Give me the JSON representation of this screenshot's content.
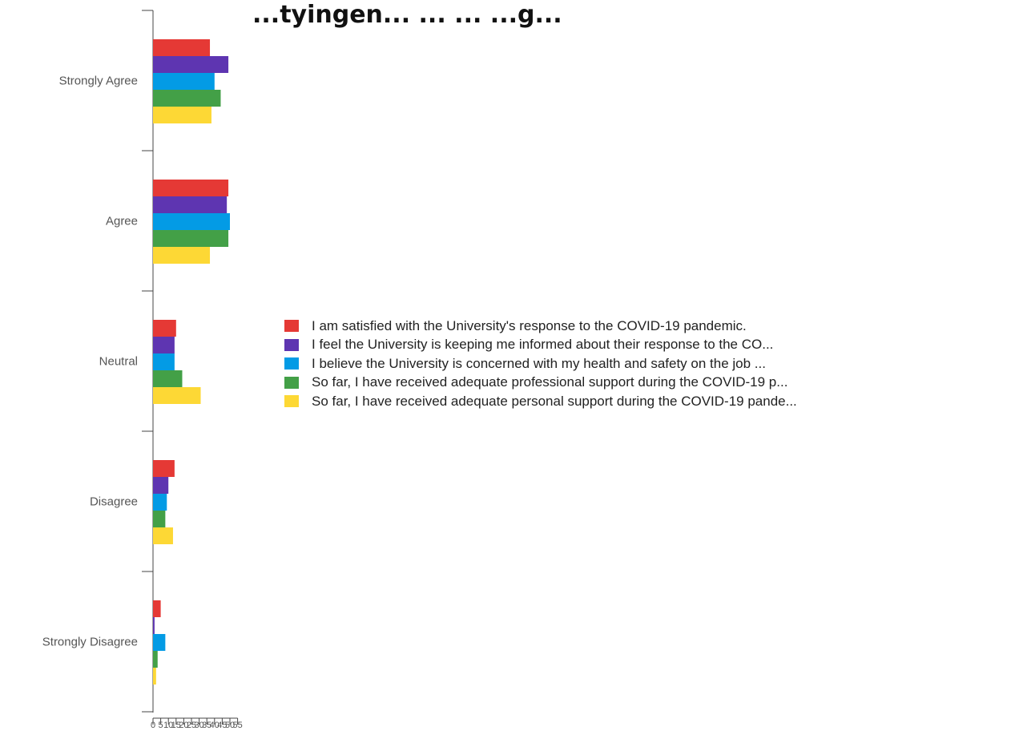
{
  "chart_data": {
    "type": "bar",
    "orientation": "horizontal",
    "title": "...tyingen... ... ... ...g...",
    "categories": [
      "Strongly Agree",
      "Agree",
      "Neutral",
      "Disagree",
      "Strongly Disagree"
    ],
    "series": [
      {
        "name": "I am satisfied with the University's response to the COVID-19 pandemic.",
        "color": "#e53935",
        "values": [
          37,
          49,
          15,
          14,
          5
        ]
      },
      {
        "name": "I feel the University is keeping me informed about their response to the CO...",
        "color": "#5e35b1",
        "values": [
          49,
          48,
          14,
          10,
          1
        ]
      },
      {
        "name": "I believe the University is concerned with my health and safety on the job ...",
        "color": "#039be5",
        "values": [
          40,
          50,
          14,
          9,
          8
        ]
      },
      {
        "name": "So far, I have received adequate professional support during the COVID-19 p...",
        "color": "#43a047",
        "values": [
          44,
          49,
          19,
          8,
          3
        ]
      },
      {
        "name": "So far, I have received adequate personal support during the COVID-19 pande...",
        "color": "#fdd835",
        "values": [
          38,
          37,
          31,
          13,
          2
        ]
      }
    ],
    "x_ticks": [
      "0",
      "5",
      "10",
      "15",
      "20",
      "25",
      "30",
      "35",
      "40",
      "45",
      "50",
      "55"
    ],
    "xlim": [
      0,
      55
    ],
    "legend_position": "right"
  }
}
